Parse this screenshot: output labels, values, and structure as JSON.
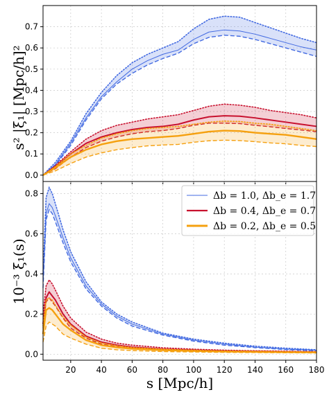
{
  "chart_data": [
    {
      "type": "line",
      "panel": "top",
      "ylabel": "s² |ξ₁| [Mpc/h]²",
      "xlim": [
        2,
        180
      ],
      "ylim": [
        -0.03,
        0.8
      ],
      "yticks": [
        0.0,
        0.1,
        0.2,
        0.3,
        0.4,
        0.5,
        0.6,
        0.7
      ],
      "ytick_labels": [
        "0.0",
        "0.1",
        "0.2",
        "0.3",
        "0.4",
        "0.5",
        "0.6",
        "0.7"
      ],
      "grid": true,
      "x": [
        2,
        10,
        20,
        30,
        40,
        50,
        60,
        70,
        80,
        90,
        100,
        110,
        120,
        130,
        140,
        150,
        160,
        170,
        180
      ],
      "series": [
        {
          "name": "Δb = 1.0, Δb_e = 1.7",
          "color": "#4169e1",
          "central": [
            0.0,
            0.05,
            0.15,
            0.27,
            0.37,
            0.44,
            0.5,
            0.54,
            0.57,
            0.59,
            0.64,
            0.675,
            0.685,
            0.68,
            0.665,
            0.645,
            0.625,
            0.605,
            0.59
          ],
          "upper": [
            0.0,
            0.06,
            0.16,
            0.29,
            0.39,
            0.47,
            0.53,
            0.57,
            0.6,
            0.63,
            0.69,
            0.735,
            0.75,
            0.745,
            0.72,
            0.695,
            0.67,
            0.645,
            0.625
          ],
          "lower": [
            0.0,
            0.045,
            0.14,
            0.26,
            0.36,
            0.43,
            0.48,
            0.52,
            0.55,
            0.575,
            0.62,
            0.65,
            0.66,
            0.655,
            0.64,
            0.62,
            0.6,
            0.58,
            0.56
          ]
        },
        {
          "name": "Δb = 0.4, Δb_e = 0.7",
          "color": "#c8102e",
          "central": [
            0.0,
            0.04,
            0.1,
            0.15,
            0.18,
            0.2,
            0.215,
            0.225,
            0.23,
            0.24,
            0.26,
            0.275,
            0.28,
            0.278,
            0.27,
            0.26,
            0.25,
            0.24,
            0.23
          ],
          "upper": [
            0.0,
            0.045,
            0.11,
            0.17,
            0.21,
            0.235,
            0.25,
            0.265,
            0.275,
            0.285,
            0.305,
            0.325,
            0.335,
            0.33,
            0.32,
            0.305,
            0.295,
            0.285,
            0.27
          ],
          "lower": [
            0.0,
            0.03,
            0.085,
            0.13,
            0.16,
            0.18,
            0.195,
            0.205,
            0.21,
            0.22,
            0.235,
            0.245,
            0.245,
            0.243,
            0.235,
            0.228,
            0.22,
            0.213,
            0.205
          ]
        },
        {
          "name": "Δb = 0.2, Δb_e = 0.5",
          "color": "#f5a00f",
          "central": [
            0.0,
            0.035,
            0.085,
            0.12,
            0.145,
            0.16,
            0.17,
            0.175,
            0.18,
            0.185,
            0.195,
            0.205,
            0.21,
            0.208,
            0.2,
            0.195,
            0.19,
            0.18,
            0.17
          ],
          "upper": [
            0.0,
            0.04,
            0.1,
            0.14,
            0.175,
            0.195,
            0.21,
            0.22,
            0.225,
            0.23,
            0.24,
            0.25,
            0.255,
            0.253,
            0.245,
            0.24,
            0.23,
            0.22,
            0.21
          ],
          "lower": [
            0.0,
            0.02,
            0.055,
            0.085,
            0.105,
            0.12,
            0.13,
            0.138,
            0.142,
            0.145,
            0.155,
            0.162,
            0.165,
            0.163,
            0.158,
            0.152,
            0.148,
            0.14,
            0.135
          ]
        }
      ]
    },
    {
      "type": "line",
      "panel": "bottom",
      "ylabel": "10⁻³ ξ₁(s)",
      "xlabel": "s [Mpc/h]",
      "xlim": [
        2,
        180
      ],
      "ylim": [
        -0.03,
        0.86
      ],
      "xticks": [
        20,
        40,
        60,
        80,
        100,
        120,
        140,
        160,
        180
      ],
      "xtick_labels": [
        "20",
        "40",
        "60",
        "80",
        "100",
        "120",
        "140",
        "160",
        "180"
      ],
      "yticks": [
        0.0,
        0.2,
        0.4,
        0.6,
        0.8
      ],
      "ytick_labels": [
        "0.0",
        "0.2",
        "0.4",
        "0.6",
        "0.8"
      ],
      "grid": true,
      "legend_position": "top-right",
      "x": [
        2,
        4,
        6,
        8,
        10,
        15,
        20,
        30,
        40,
        50,
        60,
        80,
        100,
        120,
        140,
        160,
        180
      ],
      "series": [
        {
          "name": "Δb = 1.0, Δb_e = 1.7",
          "color": "#4169e1",
          "central": [
            0.35,
            0.7,
            0.75,
            0.73,
            0.69,
            0.58,
            0.48,
            0.34,
            0.25,
            0.19,
            0.15,
            0.1,
            0.07,
            0.05,
            0.035,
            0.025,
            0.02
          ],
          "upper": [
            0.4,
            0.78,
            0.83,
            0.8,
            0.75,
            0.62,
            0.51,
            0.36,
            0.26,
            0.2,
            0.16,
            0.105,
            0.075,
            0.055,
            0.04,
            0.03,
            0.022
          ],
          "lower": [
            0.33,
            0.67,
            0.72,
            0.7,
            0.66,
            0.555,
            0.46,
            0.325,
            0.24,
            0.18,
            0.14,
            0.095,
            0.065,
            0.045,
            0.033,
            0.023,
            0.017
          ]
        },
        {
          "name": "Δb = 0.4, Δb_e = 0.7",
          "color": "#c8102e",
          "central": [
            0.15,
            0.28,
            0.31,
            0.29,
            0.27,
            0.2,
            0.15,
            0.09,
            0.06,
            0.045,
            0.035,
            0.025,
            0.02,
            0.016,
            0.014,
            0.012,
            0.01
          ],
          "upper": [
            0.2,
            0.34,
            0.37,
            0.35,
            0.32,
            0.24,
            0.18,
            0.11,
            0.075,
            0.055,
            0.045,
            0.032,
            0.025,
            0.02,
            0.017,
            0.015,
            0.013
          ],
          "lower": [
            0.13,
            0.26,
            0.28,
            0.26,
            0.24,
            0.18,
            0.13,
            0.08,
            0.05,
            0.038,
            0.03,
            0.02,
            0.016,
            0.013,
            0.011,
            0.01,
            0.008
          ]
        },
        {
          "name": "Δb = 0.2, Δb_e = 0.5",
          "color": "#f5a00f",
          "central": [
            0.1,
            0.22,
            0.23,
            0.22,
            0.2,
            0.15,
            0.12,
            0.07,
            0.045,
            0.034,
            0.027,
            0.02,
            0.016,
            0.013,
            0.011,
            0.01,
            0.009
          ],
          "upper": [
            0.14,
            0.27,
            0.28,
            0.27,
            0.245,
            0.185,
            0.145,
            0.085,
            0.056,
            0.042,
            0.033,
            0.025,
            0.02,
            0.016,
            0.014,
            0.012,
            0.011
          ],
          "lower": [
            0.06,
            0.14,
            0.16,
            0.15,
            0.14,
            0.1,
            0.08,
            0.05,
            0.03,
            0.022,
            0.018,
            0.013,
            0.011,
            0.009,
            0.008,
            0.007,
            0.006
          ]
        }
      ]
    }
  ]
}
